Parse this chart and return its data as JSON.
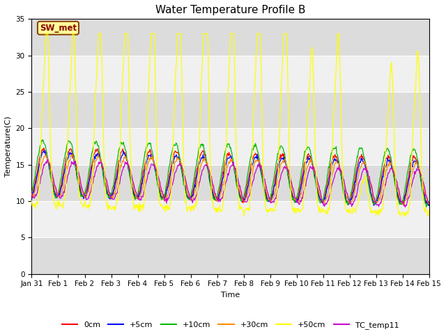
{
  "title": "Water Temperature Profile B",
  "xlabel": "Time",
  "ylabel": "Temperature(C)",
  "ylim": [
    0,
    35
  ],
  "annotation_text": "SW_met",
  "annotation_box_color": "#FFFF99",
  "annotation_text_color": "#8B0000",
  "annotation_border_color": "#8B4513",
  "plot_bg_color": "#EBEBEB",
  "series_colors": {
    "0cm": "#FF0000",
    "+5cm": "#0000FF",
    "+10cm": "#00BB00",
    "+30cm": "#FF8C00",
    "+50cm": "#FFFF00",
    "TC_temp11": "#CC00CC"
  },
  "xtick_labels": [
    "Jan 31",
    "Feb 1",
    "Feb 2",
    "Feb 3",
    "Feb 4",
    "Feb 5",
    "Feb 6",
    "Feb 7",
    "Feb 8",
    "Feb 9",
    "Feb 10",
    "Feb 11",
    "Feb 12",
    "Feb 13",
    "Feb 14",
    "Feb 15"
  ],
  "ytick_labels": [
    0,
    5,
    10,
    15,
    20,
    25,
    30,
    35
  ],
  "legend_labels": [
    "0cm",
    "+5cm",
    "+10cm",
    "+30cm",
    "+50cm",
    "TC_temp11"
  ],
  "title_fontsize": 11,
  "axis_label_fontsize": 8,
  "tick_fontsize": 7.5,
  "stripe_colors": [
    "#DCDCDC",
    "#F0F0F0"
  ]
}
